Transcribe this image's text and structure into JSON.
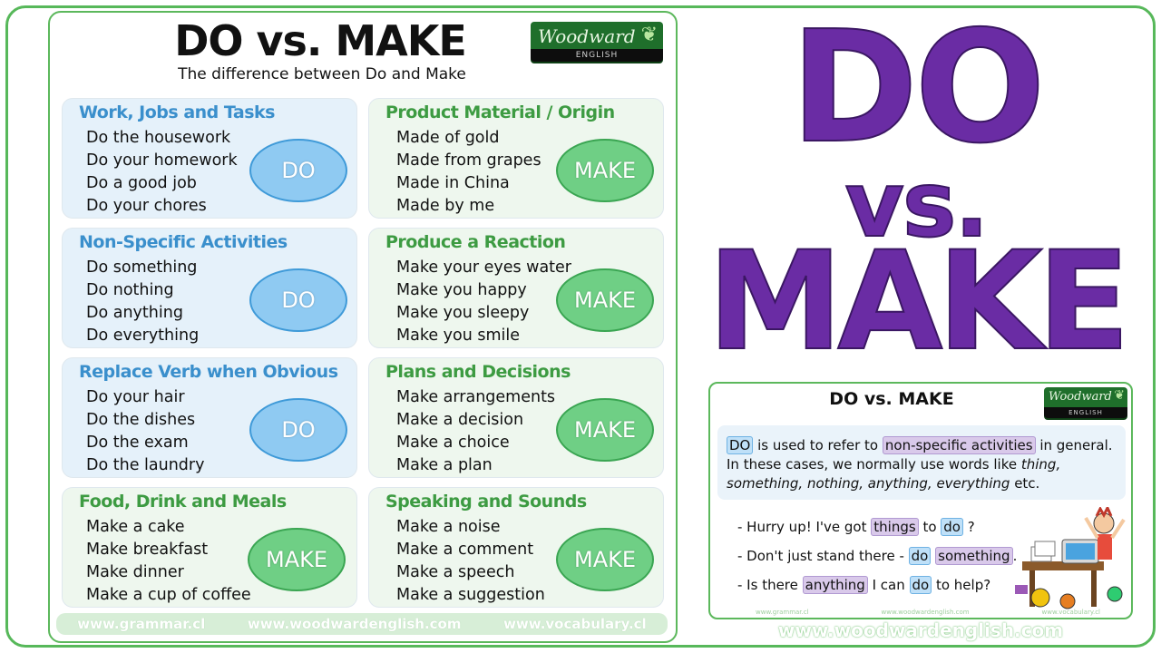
{
  "left_card": {
    "title": "DO vs. MAKE",
    "subtitle": "The difference between Do and Make",
    "logo": {
      "main": "Woodward",
      "sub": "ENGLISH"
    },
    "boxes": [
      {
        "heading": "Work, Jobs and Tasks",
        "items": [
          "Do the housework",
          "Do your homework",
          "Do a good job",
          "Do your chores"
        ],
        "verb": "DO"
      },
      {
        "heading": "Product Material / Origin",
        "items": [
          "Made of gold",
          "Made from grapes",
          "Made in China",
          "Made by me"
        ],
        "verb": "MAKE"
      },
      {
        "heading": "Non-Specific Activities",
        "items": [
          "Do something",
          "Do nothing",
          "Do anything",
          "Do everything"
        ],
        "verb": "DO"
      },
      {
        "heading": "Produce a Reaction",
        "items": [
          "Make your eyes water",
          "Make you happy",
          "Make you sleepy",
          "Make you smile"
        ],
        "verb": "MAKE"
      },
      {
        "heading": "Replace Verb when Obvious",
        "items": [
          "Do your hair",
          "Do the dishes",
          "Do the exam",
          "Do the laundry"
        ],
        "verb": "DO"
      },
      {
        "heading": "Plans and Decisions",
        "items": [
          "Make arrangements",
          "Make a decision",
          "Make a choice",
          "Make a plan"
        ],
        "verb": "MAKE"
      },
      {
        "heading": "Food, Drink and Meals",
        "items": [
          "Make a cake",
          "Make breakfast",
          "Make dinner",
          "Make a cup of coffee"
        ],
        "verb": "MAKE"
      },
      {
        "heading": "Speaking and Sounds",
        "items": [
          "Make a noise",
          "Make a comment",
          "Make a speech",
          "Make a suggestion"
        ],
        "verb": "MAKE"
      }
    ],
    "footer": [
      "www.grammar.cl",
      "www.woodwardenglish.com",
      "www.vocabulary.cl"
    ]
  },
  "big_title": {
    "line1": "DO",
    "line2": "vs.",
    "line3": "MAKE"
  },
  "mini_card": {
    "title": "DO vs. MAKE",
    "logo": {
      "main": "Woodward",
      "sub": "ENGLISH"
    },
    "explain": {
      "do_word": "DO",
      "part1": " is used to refer to ",
      "highlight": "non-specific activities",
      "part2": " in general. In these cases, we normally use words like ",
      "italic": "thing, something, nothing, anything, everything",
      "part3": " etc."
    },
    "examples": [
      {
        "a": "- Hurry up! I've got ",
        "h1": "things",
        "b": " to ",
        "h2": "do",
        "c": " ?"
      },
      {
        "a": "- Don't just stand there - ",
        "h1": "do",
        "b": " ",
        "h2": "something",
        "c": "."
      },
      {
        "a": "- Is there ",
        "h1": "anything",
        "b": " I can ",
        "h2": "do",
        "c": " to help?"
      }
    ],
    "footer": [
      "www.grammar.cl",
      "www.woodwardenglish.com",
      "www.vocabulary.cl"
    ]
  },
  "site_url": "www.woodwardenglish.com",
  "colors": {
    "frame_green": "#57b85a",
    "purple": "#6a2ca4",
    "do_blue": "#3a8fcc",
    "make_green": "#3d9b42"
  }
}
